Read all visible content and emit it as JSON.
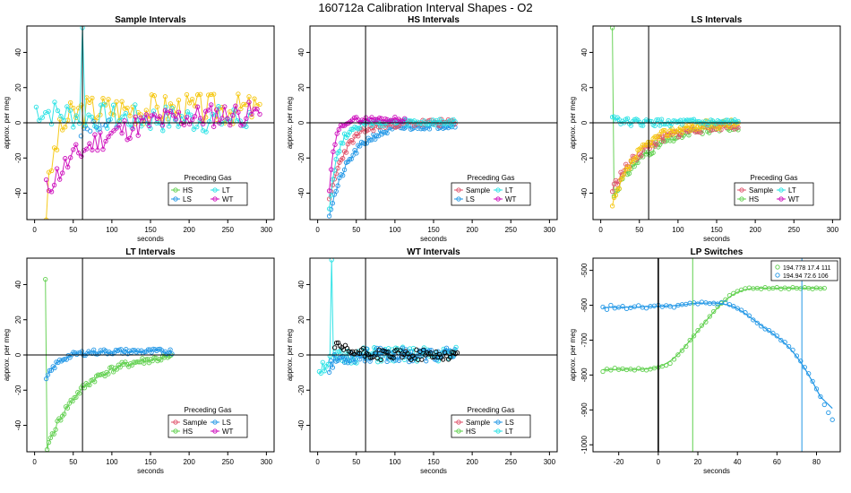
{
  "figure_title": "160712a   Calibration Interval Shapes - O2",
  "colors": {
    "red": "#df536b",
    "green": "#61d04f",
    "blue": "#2297e6",
    "cyan": "#28e2e5",
    "magenta": "#cd0bbc",
    "yellow": "#f5c710",
    "black": "#000000",
    "gray": "#9e9e9e"
  },
  "chart_data": [
    {
      "id": "sample",
      "type": "scatter",
      "title": "Sample Intervals",
      "xlabel": "seconds",
      "ylabel": "approx. per meg",
      "xlim": [
        -10,
        310
      ],
      "ylim": [
        -55,
        55
      ],
      "xticks": [
        0,
        50,
        100,
        150,
        200,
        250,
        300
      ],
      "xtick_labels": [
        "0",
        "50",
        "100",
        "150",
        "200",
        "250",
        "300"
      ],
      "yticks": [
        -40,
        -20,
        0,
        20,
        40
      ],
      "ytick_labels": [
        "-40",
        "-20",
        "0",
        "20",
        "40"
      ],
      "vline": 62,
      "hline": 0,
      "legend": {
        "title": "Preceding Gas",
        "position": "center",
        "entries": [
          {
            "label": "HS",
            "color": "green"
          },
          {
            "label": "LT",
            "color": "cyan"
          },
          {
            "label": "LS",
            "color": "blue"
          },
          {
            "label": "WT",
            "color": "magenta"
          }
        ]
      },
      "series": [
        {
          "name": "Cal yellow",
          "color": "yellow",
          "lines": true,
          "x0": 15,
          "dx": 3.5,
          "n": 80,
          "start": -50,
          "end": 8,
          "rate": 0.08,
          "noise": 9,
          "seed": 3
        },
        {
          "name": "LT",
          "color": "cyan",
          "lines": true,
          "x0": 2,
          "dx": 4,
          "n": 70,
          "start": 8,
          "end": 2,
          "rate": 0.02,
          "noise": 8,
          "seed": 7,
          "spike_x": 62,
          "spike_y": 54
        },
        {
          "name": "WT",
          "color": "magenta",
          "lines": true,
          "x0": 15,
          "dx": 3.5,
          "n": 80,
          "start": -38,
          "end": 6,
          "rate": 0.015,
          "noise": 7,
          "seed": 11
        },
        {
          "name": "LS",
          "color": "blue",
          "lines": false,
          "x0": 60,
          "dx": 4,
          "n": 10,
          "start": -8,
          "end": 0,
          "rate": 0.1,
          "noise": 3,
          "seed": 13
        }
      ]
    },
    {
      "id": "hs",
      "type": "scatter",
      "title": "HS Intervals",
      "xlabel": "seconds",
      "ylabel": "approx. per meg",
      "xlim": [
        -10,
        310
      ],
      "ylim": [
        -55,
        55
      ],
      "xticks": [
        0,
        50,
        100,
        150,
        200,
        250,
        300
      ],
      "xtick_labels": [
        "0",
        "50",
        "100",
        "150",
        "200",
        "250",
        "300"
      ],
      "yticks": [
        -40,
        -20,
        0,
        20,
        40
      ],
      "ytick_labels": [
        "-40",
        "-20",
        "0",
        "20",
        "40"
      ],
      "vline": 62,
      "hline": 0,
      "legend": {
        "title": "Preceding Gas",
        "position": "center",
        "entries": [
          {
            "label": "Sample",
            "color": "red"
          },
          {
            "label": "LT",
            "color": "cyan"
          },
          {
            "label": "LS",
            "color": "blue"
          },
          {
            "label": "WT",
            "color": "magenta"
          }
        ]
      },
      "series": [
        {
          "name": "LS",
          "color": "blue",
          "lines": true,
          "x0": 15,
          "dx": 2.2,
          "n": 75,
          "start": -52,
          "end": -1,
          "rate": 0.035,
          "noise": 2,
          "seed": 21
        },
        {
          "name": "Sample",
          "color": "red",
          "lines": true,
          "x0": 15,
          "dx": 2.2,
          "n": 75,
          "start": -45,
          "end": 0,
          "rate": 0.05,
          "noise": 2,
          "seed": 23
        },
        {
          "name": "LT",
          "color": "cyan",
          "lines": true,
          "x0": 15,
          "dx": 2.2,
          "n": 75,
          "start": -48,
          "end": 0,
          "rate": 0.09,
          "noise": 2,
          "seed": 27
        },
        {
          "name": "WT",
          "color": "magenta",
          "lines": true,
          "x0": 15,
          "dx": 2.5,
          "n": 40,
          "start": -40,
          "end": 2,
          "rate": 0.15,
          "noise": 1.5,
          "seed": 29
        }
      ]
    },
    {
      "id": "ls",
      "type": "scatter",
      "title": "LS Intervals",
      "xlabel": "seconds",
      "ylabel": "approx. per meg",
      "xlim": [
        -10,
        310
      ],
      "ylim": [
        -55,
        55
      ],
      "xticks": [
        0,
        50,
        100,
        150,
        200,
        250,
        300
      ],
      "xtick_labels": [
        "0",
        "50",
        "100",
        "150",
        "200",
        "250",
        "300"
      ],
      "yticks": [
        -40,
        -20,
        0,
        20,
        40
      ],
      "ytick_labels": [
        "-40",
        "-20",
        "0",
        "20",
        "40"
      ],
      "vline": 62,
      "hline": 0,
      "legend": {
        "title": "Preceding Gas",
        "position": "center",
        "entries": [
          {
            "label": "Sample",
            "color": "red"
          },
          {
            "label": "LT",
            "color": "cyan"
          },
          {
            "label": "HS",
            "color": "green"
          },
          {
            "label": "WT",
            "color": "magenta"
          }
        ]
      },
      "series": [
        {
          "name": "HS",
          "color": "green",
          "lines": true,
          "x0": 15,
          "dx": 2.2,
          "n": 75,
          "start": -42,
          "end": 0,
          "rate": 0.02,
          "noise": 2.5,
          "seed": 31,
          "spike_x": 16,
          "spike_y": 54
        },
        {
          "name": "Sample",
          "color": "red",
          "lines": true,
          "x0": 15,
          "dx": 2.2,
          "n": 75,
          "start": -38,
          "end": 0,
          "rate": 0.022,
          "noise": 2.5,
          "seed": 33
        },
        {
          "name": "Cal yellow",
          "color": "yellow",
          "lines": true,
          "x0": 15,
          "dx": 2.2,
          "n": 75,
          "start": -48,
          "end": 0,
          "rate": 0.03,
          "noise": 2.5,
          "seed": 37
        },
        {
          "name": "LT",
          "color": "cyan",
          "lines": true,
          "x0": 15,
          "dx": 2.2,
          "n": 75,
          "start": 4,
          "end": 0,
          "rate": 0.1,
          "noise": 2,
          "seed": 39
        }
      ]
    },
    {
      "id": "lt",
      "type": "scatter",
      "title": "LT Intervals",
      "xlabel": "seconds",
      "ylabel": "approx. per meg",
      "xlim": [
        -10,
        310
      ],
      "ylim": [
        -55,
        55
      ],
      "xticks": [
        0,
        50,
        100,
        150,
        200,
        250,
        300
      ],
      "xtick_labels": [
        "0",
        "50",
        "100",
        "150",
        "200",
        "250",
        "300"
      ],
      "yticks": [
        -40,
        -20,
        0,
        20,
        40
      ],
      "ytick_labels": [
        "-40",
        "-20",
        "0",
        "20",
        "40"
      ],
      "vline": 62,
      "hline": 0,
      "legend": {
        "title": "Preceding Gas",
        "position": "center",
        "entries": [
          {
            "label": "Sample",
            "color": "red"
          },
          {
            "label": "LS",
            "color": "blue"
          },
          {
            "label": "HS",
            "color": "green"
          },
          {
            "label": "WT",
            "color": "magenta"
          }
        ]
      },
      "series": [
        {
          "name": "HS",
          "color": "green",
          "lines": true,
          "x0": 14,
          "dx": 2.2,
          "n": 75,
          "start": -55,
          "end": 0,
          "rate": 0.022,
          "noise": 2,
          "seed": 41,
          "spike_x": 12,
          "spike_y": 43
        },
        {
          "name": "LS",
          "color": "blue",
          "lines": true,
          "x0": 15,
          "dx": 2.2,
          "n": 75,
          "start": -14,
          "end": 2,
          "rate": 0.06,
          "noise": 1.5,
          "seed": 43
        }
      ]
    },
    {
      "id": "wt",
      "type": "scatter",
      "title": "WT Intervals",
      "xlabel": "seconds",
      "ylabel": "approx. per meg",
      "xlim": [
        -10,
        310
      ],
      "ylim": [
        -55,
        55
      ],
      "xticks": [
        0,
        50,
        100,
        150,
        200,
        250,
        300
      ],
      "xtick_labels": [
        "0",
        "50",
        "100",
        "150",
        "200",
        "250",
        "300"
      ],
      "yticks": [
        -40,
        -20,
        0,
        20,
        40
      ],
      "ytick_labels": [
        "-40",
        "-20",
        "0",
        "20",
        "40"
      ],
      "vline": 62,
      "hline": 0,
      "legend": {
        "title": "Preceding Gas",
        "position": "center",
        "entries": [
          {
            "label": "Sample",
            "color": "red"
          },
          {
            "label": "LS",
            "color": "blue"
          },
          {
            "label": "HS",
            "color": "green"
          },
          {
            "label": "LT",
            "color": "cyan"
          }
        ]
      },
      "series": [
        {
          "name": "LT",
          "color": "cyan",
          "lines": true,
          "x0": 2,
          "dx": 2.3,
          "n": 78,
          "start": -8,
          "end": 0,
          "rate": 0.06,
          "noise": 4.5,
          "seed": 51,
          "spike_x": 18,
          "spike_y": 54
        },
        {
          "name": "LS",
          "color": "blue",
          "lines": true,
          "x0": 15,
          "dx": 2.2,
          "n": 75,
          "start": -6,
          "end": 0,
          "rate": 0.08,
          "noise": 4,
          "seed": 53
        },
        {
          "name": "Sample",
          "color": "black",
          "lines": false,
          "x0": 22,
          "dx": 2.3,
          "n": 70,
          "start": 5,
          "end": 0,
          "rate": 0.05,
          "noise": 3,
          "seed": 57
        }
      ]
    },
    {
      "id": "lp",
      "type": "scatter",
      "title": "LP Switches",
      "xlabel": "seconds",
      "ylabel": "approx. per meg",
      "xlim": [
        -33,
        92
      ],
      "ylim": [
        -1020,
        -465
      ],
      "xticks": [
        -20,
        0,
        20,
        40,
        60,
        80
      ],
      "xtick_labels": [
        "-20",
        "0",
        "20",
        "40",
        "60",
        "80"
      ],
      "yticks": [
        -1000,
        -900,
        -800,
        -700,
        -600,
        -500
      ],
      "ytick_labels": [
        "-1000",
        "-900",
        "-800",
        "-700",
        "-600",
        "-500"
      ],
      "vlines": [
        {
          "x": 0,
          "color": "black",
          "width": 1.6
        },
        {
          "x": 17.4,
          "color": "green",
          "width": 1
        },
        {
          "x": 72.6,
          "color": "blue",
          "width": 1
        }
      ],
      "legend": {
        "title": "",
        "position": "top-right",
        "entries": [
          {
            "label": "194.778 17.4 111",
            "color": "green"
          },
          {
            "label": "194.94 72.6 106",
            "color": "blue"
          }
        ]
      },
      "series": [
        {
          "name": "194.778 17.4 111",
          "color": "green",
          "lines": false,
          "smooth": true,
          "x": [
            -28,
            -26,
            -24,
            -22,
            -20,
            -18,
            -16,
            -14,
            -12,
            -10,
            -8,
            -6,
            -4,
            -2,
            0,
            2,
            4,
            6,
            8,
            10,
            12,
            14,
            16,
            18,
            20,
            22,
            24,
            26,
            28,
            30,
            32,
            34,
            36,
            38,
            40,
            42,
            44,
            46,
            48,
            50,
            52,
            54,
            56,
            58,
            60,
            62,
            64,
            66,
            68,
            70,
            72,
            74,
            76,
            78,
            80,
            82,
            84
          ],
          "y": [
            -790,
            -783,
            -786,
            -780,
            -784,
            -782,
            -785,
            -783,
            -786,
            -781,
            -784,
            -786,
            -783,
            -780,
            -778,
            -775,
            -772,
            -767,
            -755,
            -742,
            -730,
            -718,
            -700,
            -688,
            -672,
            -658,
            -648,
            -632,
            -618,
            -604,
            -594,
            -584,
            -572,
            -566,
            -560,
            -556,
            -552,
            -550,
            -552,
            -551,
            -553,
            -549,
            -552,
            -551,
            -549,
            -553,
            -550,
            -553,
            -549,
            -551,
            -552,
            -549,
            -551,
            -553,
            -550,
            -552,
            -551
          ]
        },
        {
          "name": "194.94 72.6 106",
          "color": "blue",
          "lines": false,
          "smooth": true,
          "x": [
            -28,
            -26,
            -24,
            -22,
            -20,
            -18,
            -16,
            -14,
            -12,
            -10,
            -8,
            -6,
            -4,
            -2,
            0,
            2,
            4,
            6,
            8,
            10,
            12,
            14,
            16,
            18,
            20,
            22,
            24,
            26,
            28,
            30,
            32,
            34,
            36,
            38,
            40,
            42,
            44,
            46,
            48,
            50,
            52,
            54,
            56,
            58,
            60,
            62,
            64,
            66,
            68,
            70,
            72,
            74,
            76,
            78,
            80,
            82,
            84,
            86,
            88
          ],
          "y": [
            -605,
            -612,
            -600,
            -608,
            -606,
            -603,
            -610,
            -607,
            -604,
            -601,
            -606,
            -608,
            -603,
            -602,
            -600,
            -604,
            -601,
            -603,
            -606,
            -600,
            -598,
            -597,
            -594,
            -593,
            -596,
            -591,
            -593,
            -595,
            -594,
            -596,
            -592,
            -593,
            -598,
            -603,
            -609,
            -614,
            -621,
            -630,
            -642,
            -651,
            -660,
            -668,
            -672,
            -680,
            -688,
            -700,
            -706,
            -718,
            -728,
            -745,
            -760,
            -778,
            -796,
            -818,
            -840,
            -862,
            -885,
            -908,
            -928
          ]
        }
      ]
    }
  ]
}
